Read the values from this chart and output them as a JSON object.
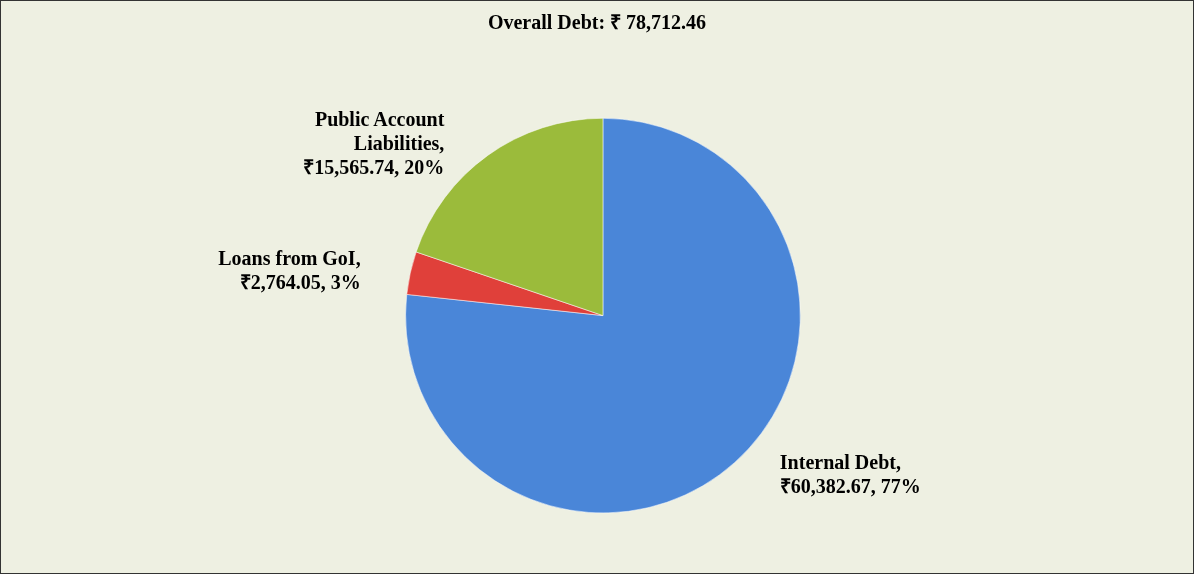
{
  "chart_data": {
    "type": "pie",
    "title": "Overall Debt: ₹ 78,712.46",
    "categories": [
      "Internal Debt",
      "Loans from GoI",
      "Public Account Liabilities"
    ],
    "values": [
      60382.67,
      2764.05,
      15565.74
    ],
    "colors": [
      "#4a86d8",
      "#e0403a",
      "#9bbb3b"
    ],
    "value_labels": [
      ", ₹60,382.67, 77%",
      ", ₹2,764.05, 3%",
      ", ₹15,565.74, 20%"
    ],
    "legend": false
  }
}
